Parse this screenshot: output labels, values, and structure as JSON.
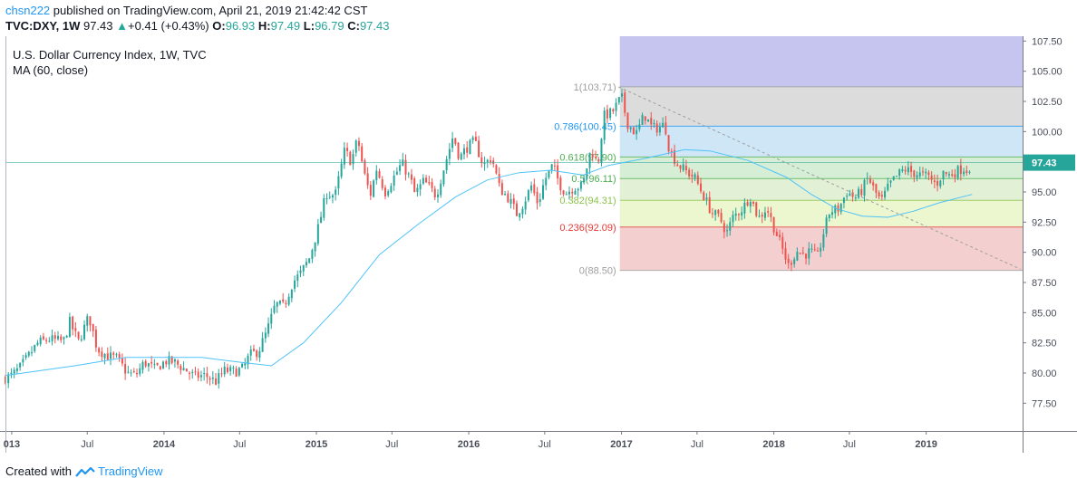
{
  "header": {
    "user": "chsn222",
    "published_text": "published on TradingView.com, April 21, 2019 21:42:42 CST",
    "symbol": "TVC:DXY, 1W",
    "last": "97.43",
    "change": "+0.41 (+0.43%)",
    "o_label": "O:",
    "o_value": "96.93",
    "h_label": "H:",
    "h_value": "97.49",
    "l_label": "L:",
    "l_value": "96.79",
    "c_label": "C:",
    "c_value": "97.43"
  },
  "legend": {
    "title": "U.S. Dollar Currency Index, 1W, TVC",
    "ma": "MA (60, close)"
  },
  "footer": {
    "created_with": "Created with",
    "brand": "TradingView"
  },
  "colors": {
    "up": "#26a69a",
    "down": "#ef5350",
    "ma": "#4fc3f7",
    "last_price_bg": "#26a69a",
    "trend": "#9e9e9e",
    "fib_top": "#c5c5f0",
    "fib_1": "#dcdcdc",
    "fib_0786": "#cfe6f6",
    "fib_0618": "#d6eed6",
    "fib_05": "#e2f0d6",
    "fib_0382": "#ecf6cf",
    "fib_0236": "#f4cfcf"
  },
  "chart_data": {
    "type": "candlestick",
    "title": "U.S. Dollar Currency Index, 1W, TVC",
    "x_ticks": [
      {
        "date": "2013-01-01",
        "label": "013"
      },
      {
        "date": "2013-07-01",
        "label": "Jul"
      },
      {
        "date": "2014-01-01",
        "label": "2014"
      },
      {
        "date": "2014-07-01",
        "label": "Jul"
      },
      {
        "date": "2015-01-01",
        "label": "2015"
      },
      {
        "date": "2015-07-01",
        "label": "Jul"
      },
      {
        "date": "2016-01-01",
        "label": "2016"
      },
      {
        "date": "2016-07-01",
        "label": "Jul"
      },
      {
        "date": "2017-01-01",
        "label": "2017"
      },
      {
        "date": "2017-07-01",
        "label": "Jul"
      },
      {
        "date": "2018-01-01",
        "label": "2018"
      },
      {
        "date": "2018-07-01",
        "label": "Jul"
      },
      {
        "date": "2019-01-01",
        "label": "2019"
      }
    ],
    "y_ticks": [
      "107.50",
      "105.00",
      "102.50",
      "100.00",
      "97.50",
      "95.00",
      "92.50",
      "90.00",
      "87.50",
      "85.00",
      "82.50",
      "80.00",
      "77.50"
    ],
    "ylim": [
      75.2,
      107.9
    ],
    "xlim": [
      "2012-12-17",
      "2019-08-20"
    ],
    "last_price": 97.43,
    "price_path": [
      [
        "2012-12-17",
        79.6
      ],
      [
        "2013-01-01",
        79.8
      ],
      [
        "2013-01-20",
        80.4
      ],
      [
        "2013-02-10",
        81.4
      ],
      [
        "2013-03-05",
        82.5
      ],
      [
        "2013-04-01",
        82.8
      ],
      [
        "2013-05-05",
        82.6
      ],
      [
        "2013-05-20",
        84.2
      ],
      [
        "2013-06-10",
        82.6
      ],
      [
        "2013-07-05",
        84.7
      ],
      [
        "2013-07-25",
        82.0
      ],
      [
        "2013-08-20",
        81.4
      ],
      [
        "2013-09-10",
        81.2
      ],
      [
        "2013-10-05",
        80.0
      ],
      [
        "2013-10-25",
        79.8
      ],
      [
        "2013-11-15",
        80.9
      ],
      [
        "2013-12-10",
        80.3
      ],
      [
        "2014-01-05",
        81.0
      ],
      [
        "2014-01-25",
        80.9
      ],
      [
        "2014-02-20",
        80.3
      ],
      [
        "2014-03-15",
        79.7
      ],
      [
        "2014-04-10",
        79.8
      ],
      [
        "2014-05-05",
        79.3
      ],
      [
        "2014-05-25",
        80.2
      ],
      [
        "2014-06-20",
        80.1
      ],
      [
        "2014-07-10",
        80.4
      ],
      [
        "2014-07-25",
        81.5
      ],
      [
        "2014-08-15",
        81.8
      ],
      [
        "2014-09-05",
        83.5
      ],
      [
        "2014-09-25",
        85.7
      ],
      [
        "2014-10-15",
        85.5
      ],
      [
        "2014-11-05",
        87.5
      ],
      [
        "2014-11-25",
        88.3
      ],
      [
        "2014-12-15",
        89.5
      ],
      [
        "2015-01-05",
        92.0
      ],
      [
        "2015-01-25",
        94.9
      ],
      [
        "2015-02-15",
        94.7
      ],
      [
        "2015-03-10",
        98.5
      ],
      [
        "2015-03-25",
        97.5
      ],
      [
        "2015-04-10",
        99.4
      ],
      [
        "2015-04-25",
        96.6
      ],
      [
        "2015-05-10",
        94.7
      ],
      [
        "2015-05-25",
        96.9
      ],
      [
        "2015-06-15",
        95.0
      ],
      [
        "2015-07-05",
        96.2
      ],
      [
        "2015-07-25",
        97.4
      ],
      [
        "2015-08-15",
        96.0
      ],
      [
        "2015-08-25",
        94.8
      ],
      [
        "2015-09-15",
        95.9
      ],
      [
        "2015-10-15",
        94.7
      ],
      [
        "2015-11-05",
        97.3
      ],
      [
        "2015-11-25",
        99.7
      ],
      [
        "2015-12-10",
        97.8
      ],
      [
        "2015-12-25",
        98.6
      ],
      [
        "2016-01-15",
        99.2
      ],
      [
        "2016-02-05",
        97.2
      ],
      [
        "2016-02-25",
        97.9
      ],
      [
        "2016-03-15",
        95.3
      ],
      [
        "2016-04-05",
        94.5
      ],
      [
        "2016-04-25",
        93.2
      ],
      [
        "2016-05-10",
        94.0
      ],
      [
        "2016-05-30",
        95.5
      ],
      [
        "2016-06-15",
        94.0
      ],
      [
        "2016-07-01",
        96.0
      ],
      [
        "2016-07-20",
        97.2
      ],
      [
        "2016-08-05",
        95.7
      ],
      [
        "2016-08-20",
        94.9
      ],
      [
        "2016-09-10",
        95.4
      ],
      [
        "2016-09-30",
        95.5
      ],
      [
        "2016-10-20",
        98.6
      ],
      [
        "2016-11-05",
        97.2
      ],
      [
        "2016-11-20",
        101.3
      ],
      [
        "2016-12-10",
        101.6
      ],
      [
        "2017-01-01",
        102.9
      ],
      [
        "2017-01-15",
        100.7
      ],
      [
        "2017-02-05",
        99.8
      ],
      [
        "2017-02-25",
        101.4
      ],
      [
        "2017-03-15",
        100.3
      ],
      [
        "2017-03-30",
        100.3
      ],
      [
        "2017-04-15",
        100.6
      ],
      [
        "2017-04-25",
        98.6
      ],
      [
        "2017-05-15",
        97.3
      ],
      [
        "2017-06-05",
        96.7
      ],
      [
        "2017-06-25",
        96.2
      ],
      [
        "2017-07-15",
        94.8
      ],
      [
        "2017-08-05",
        93.3
      ],
      [
        "2017-08-25",
        92.8
      ],
      [
        "2017-09-10",
        91.6
      ],
      [
        "2017-09-25",
        92.9
      ],
      [
        "2017-10-20",
        93.7
      ],
      [
        "2017-11-05",
        94.7
      ],
      [
        "2017-11-25",
        92.8
      ],
      [
        "2017-12-15",
        93.7
      ],
      [
        "2018-01-01",
        92.1
      ],
      [
        "2018-01-20",
        90.4
      ],
      [
        "2018-02-05",
        88.9
      ],
      [
        "2018-02-25",
        90.1
      ],
      [
        "2018-03-15",
        89.8
      ],
      [
        "2018-03-30",
        90.1
      ],
      [
        "2018-04-15",
        89.5
      ],
      [
        "2018-04-30",
        91.6
      ],
      [
        "2018-05-15",
        93.4
      ],
      [
        "2018-06-05",
        93.6
      ],
      [
        "2018-06-25",
        95.0
      ],
      [
        "2018-07-15",
        94.5
      ],
      [
        "2018-08-01",
        95.2
      ],
      [
        "2018-08-15",
        96.2
      ],
      [
        "2018-08-30",
        95.1
      ],
      [
        "2018-09-15",
        94.2
      ],
      [
        "2018-10-05",
        95.6
      ],
      [
        "2018-10-25",
        96.4
      ],
      [
        "2018-11-10",
        96.9
      ],
      [
        "2018-11-30",
        96.6
      ],
      [
        "2018-12-20",
        96.4
      ],
      [
        "2019-01-05",
        96.3
      ],
      [
        "2019-01-25",
        95.6
      ],
      [
        "2019-02-10",
        96.6
      ],
      [
        "2019-02-25",
        96.4
      ],
      [
        "2019-03-15",
        96.7
      ],
      [
        "2019-03-30",
        97.0
      ],
      [
        "2019-04-10",
        96.8
      ],
      [
        "2019-04-21",
        97.43
      ]
    ],
    "ma_path": [
      [
        "2012-12-17",
        79.8
      ],
      [
        "2013-06-01",
        80.6
      ],
      [
        "2013-10-01",
        81.3
      ],
      [
        "2014-04-01",
        81.3
      ],
      [
        "2014-07-01",
        80.9
      ],
      [
        "2014-09-15",
        80.6
      ],
      [
        "2014-12-01",
        82.5
      ],
      [
        "2015-03-01",
        85.8
      ],
      [
        "2015-06-01",
        89.8
      ],
      [
        "2015-09-01",
        92.3
      ],
      [
        "2015-12-01",
        94.6
      ],
      [
        "2016-02-15",
        96.0
      ],
      [
        "2016-05-01",
        96.6
      ],
      [
        "2016-07-15",
        96.8
      ],
      [
        "2016-10-01",
        96.4
      ],
      [
        "2016-12-01",
        97.2
      ],
      [
        "2017-03-01",
        97.8
      ],
      [
        "2017-06-01",
        98.5
      ],
      [
        "2017-08-01",
        98.4
      ],
      [
        "2017-11-01",
        97.6
      ],
      [
        "2018-02-01",
        96.2
      ],
      [
        "2018-04-01",
        94.8
      ],
      [
        "2018-06-01",
        93.6
      ],
      [
        "2018-08-01",
        93.0
      ],
      [
        "2018-10-01",
        92.9
      ],
      [
        "2018-12-01",
        93.4
      ],
      [
        "2019-02-01",
        94.1
      ],
      [
        "2019-04-21",
        94.8
      ]
    ],
    "trendline": [
      [
        "2016-12-25",
        103.7
      ],
      [
        "2019-08-15",
        88.6
      ]
    ],
    "fib": {
      "x_start": "2016-12-28",
      "levels": [
        {
          "ratio": "1",
          "value": 103.71,
          "label": "1(103.71)",
          "color": "#9e9e9e"
        },
        {
          "ratio": "0.786",
          "value": 100.45,
          "label": "0.786(100.45)",
          "color": "#2196f3"
        },
        {
          "ratio": "0.618",
          "value": 97.9,
          "label": "0.618(97.90)",
          "color": "#4caf50"
        },
        {
          "ratio": "0.5",
          "value": 96.11,
          "label": "0.5(96.11)",
          "color": "#4caf50"
        },
        {
          "ratio": "0.382",
          "value": 94.31,
          "label": "0.382(94.31)",
          "color": "#8bc34a"
        },
        {
          "ratio": "0.236",
          "value": 92.09,
          "label": "0.236(92.09)",
          "color": "#e53935"
        },
        {
          "ratio": "0",
          "value": 88.5,
          "label": "0(88.50)",
          "color": "#9e9e9e"
        }
      ]
    }
  }
}
